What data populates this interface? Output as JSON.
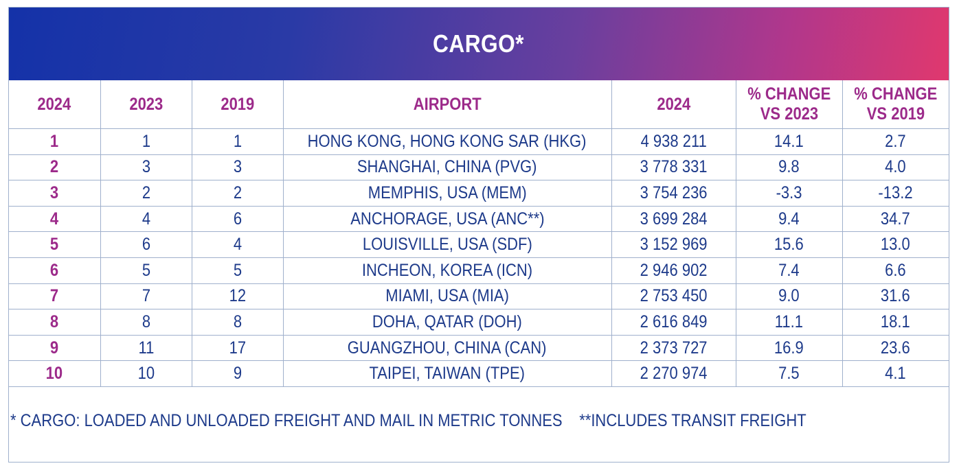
{
  "title": "CARGO*",
  "colors": {
    "banner_start": "#1432a8",
    "banner_end": "#e0386e",
    "header_text": "#9c2a8a",
    "body_text": "#1d3a8a",
    "grid": "#9fb0cc"
  },
  "footnotes": {
    "cargo": "* CARGO: LOADED AND UNLOADED FREIGHT AND MAIL IN METRIC TONNES",
    "transit": "**INCLUDES TRANSIT FREIGHT"
  },
  "chart_data": {
    "type": "table",
    "title": "CARGO*",
    "columns": [
      {
        "line1": "2024",
        "line2": ""
      },
      {
        "line1": "2023",
        "line2": ""
      },
      {
        "line1": "2019",
        "line2": ""
      },
      {
        "line1": "AIRPORT",
        "line2": ""
      },
      {
        "line1": "2024",
        "line2": ""
      },
      {
        "line1": "% CHANGE",
        "line2": "VS 2023"
      },
      {
        "line1": "% CHANGE",
        "line2": "VS 2019"
      }
    ],
    "rows": [
      [
        "1",
        "1",
        "1",
        "HONG KONG, HONG KONG SAR (HKG)",
        "4 938 211",
        "14.1",
        "2.7"
      ],
      [
        "2",
        "3",
        "3",
        "SHANGHAI, CHINA (PVG)",
        "3 778 331",
        "9.8",
        "4.0"
      ],
      [
        "3",
        "2",
        "2",
        "MEMPHIS, USA (MEM)",
        "3 754 236",
        "-3.3",
        "-13.2"
      ],
      [
        "4",
        "4",
        "6",
        "ANCHORAGE, USA (ANC**)",
        "3 699 284",
        "9.4",
        "34.7"
      ],
      [
        "5",
        "6",
        "4",
        "LOUISVILLE, USA (SDF)",
        "3 152 969",
        "15.6",
        "13.0"
      ],
      [
        "6",
        "5",
        "5",
        "INCHEON, KOREA (ICN)",
        "2 946 902",
        "7.4",
        "6.6"
      ],
      [
        "7",
        "7",
        "12",
        "MIAMI, USA (MIA)",
        "2 753 450",
        "9.0",
        "31.6"
      ],
      [
        "8",
        "8",
        "8",
        "DOHA, QATAR (DOH)",
        "2 616 849",
        "11.1",
        "18.1"
      ],
      [
        "9",
        "11",
        "17",
        "GUANGZHOU, CHINA (CAN)",
        "2 373 727",
        "16.9",
        "23.6"
      ],
      [
        "10",
        "10",
        "9",
        "TAIPEI, TAIWAN (TPE)",
        "2 270 974",
        "7.5",
        "4.1"
      ]
    ]
  }
}
